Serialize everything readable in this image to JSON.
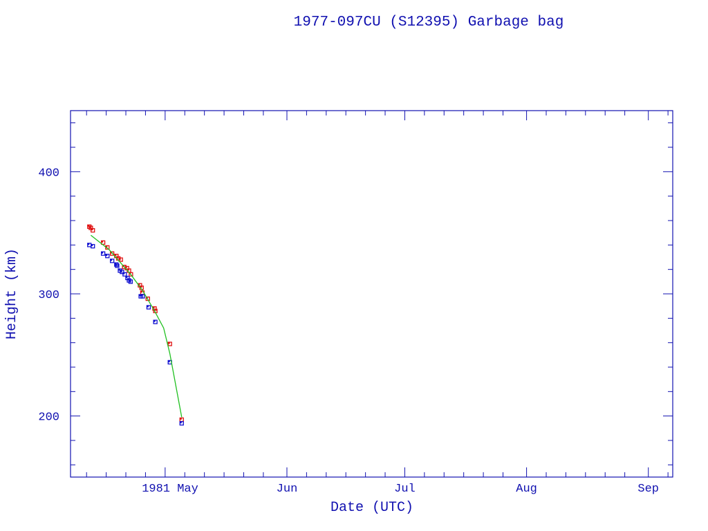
{
  "chart_data": {
    "type": "scatter",
    "title": "1977-097CU (S12395) Garbage bag",
    "xlabel": "Date (UTC)",
    "ylabel": "Height (km)",
    "xlim": [
      "1981-04-06T22:00",
      "1981-09-07T05:00"
    ],
    "ylim": [
      150,
      450
    ],
    "yticks": [
      200,
      300,
      400
    ],
    "xticks": [
      {
        "date": "1981-05-01",
        "label": "1981 May"
      },
      {
        "date": "1981-06-01",
        "label": "Jun"
      },
      {
        "date": "1981-07-01",
        "label": "Jul"
      },
      {
        "date": "1981-08-01",
        "label": "Aug"
      },
      {
        "date": "1981-09-01",
        "label": "Sep"
      }
    ],
    "grid": false,
    "colors": {
      "axis": "#1010b0",
      "apogee": "#e01010",
      "perigee": "#1010d0",
      "mean": "#20c020"
    },
    "series": [
      {
        "marker": "square",
        "color": "#e01010",
        "points": [
          [
            "1981-04-11T17:00",
            355
          ],
          [
            "1981-04-12T02:00",
            354
          ],
          [
            "1981-04-12T14:00",
            352
          ],
          [
            "1981-04-15T05:00",
            342
          ],
          [
            "1981-04-16T07:00",
            338
          ],
          [
            "1981-04-17T12:00",
            333
          ],
          [
            "1981-04-18T14:00",
            331
          ],
          [
            "1981-04-19T02:00",
            329
          ],
          [
            "1981-04-19T17:00",
            328
          ],
          [
            "1981-04-20T14:00",
            322
          ],
          [
            "1981-04-21T07:00",
            321
          ],
          [
            "1981-04-21T19:00",
            319
          ],
          [
            "1981-04-22T07:00",
            316
          ],
          [
            "1981-04-24T14:00",
            307
          ],
          [
            "1981-04-25T00:00",
            305
          ],
          [
            "1981-04-25T05:00",
            301
          ],
          [
            "1981-04-26T14:00",
            296
          ],
          [
            "1981-04-28T07:00",
            288
          ],
          [
            "1981-04-28T12:00",
            286
          ],
          [
            "1981-05-02T05:00",
            259
          ],
          [
            "1981-05-05T05:00",
            197
          ]
        ]
      },
      {
        "marker": "square",
        "color": "#1010d0",
        "points": [
          [
            "1981-04-11T17:00",
            340
          ],
          [
            "1981-04-12T14:00",
            339
          ],
          [
            "1981-04-15T05:00",
            333
          ],
          [
            "1981-04-16T07:00",
            331
          ],
          [
            "1981-04-17T12:00",
            327
          ],
          [
            "1981-04-18T14:00",
            324
          ],
          [
            "1981-04-18T19:00",
            323
          ],
          [
            "1981-04-19T12:00",
            319
          ],
          [
            "1981-04-20T00:00",
            318
          ],
          [
            "1981-04-20T17:00",
            316
          ],
          [
            "1981-04-21T10:00",
            313
          ],
          [
            "1981-04-21T19:00",
            311
          ],
          [
            "1981-04-22T05:00",
            310
          ],
          [
            "1981-04-24T19:00",
            298
          ],
          [
            "1981-04-25T07:00",
            298
          ],
          [
            "1981-04-26T19:00",
            289
          ],
          [
            "1981-04-28T12:00",
            277
          ],
          [
            "1981-05-02T05:00",
            244
          ],
          [
            "1981-05-05T05:00",
            194
          ]
        ]
      },
      {
        "marker": "line",
        "color": "#20c020",
        "points": [
          [
            "1981-04-12T02:00",
            348
          ],
          [
            "1981-04-16T19:00",
            336
          ],
          [
            "1981-04-22T05:00",
            316
          ],
          [
            "1981-04-25T05:00",
            303
          ],
          [
            "1981-04-28T07:00",
            286
          ],
          [
            "1981-04-30T15:00",
            272
          ],
          [
            "1981-05-02T05:00",
            251
          ],
          [
            "1981-05-05T05:00",
            199
          ]
        ]
      }
    ]
  }
}
